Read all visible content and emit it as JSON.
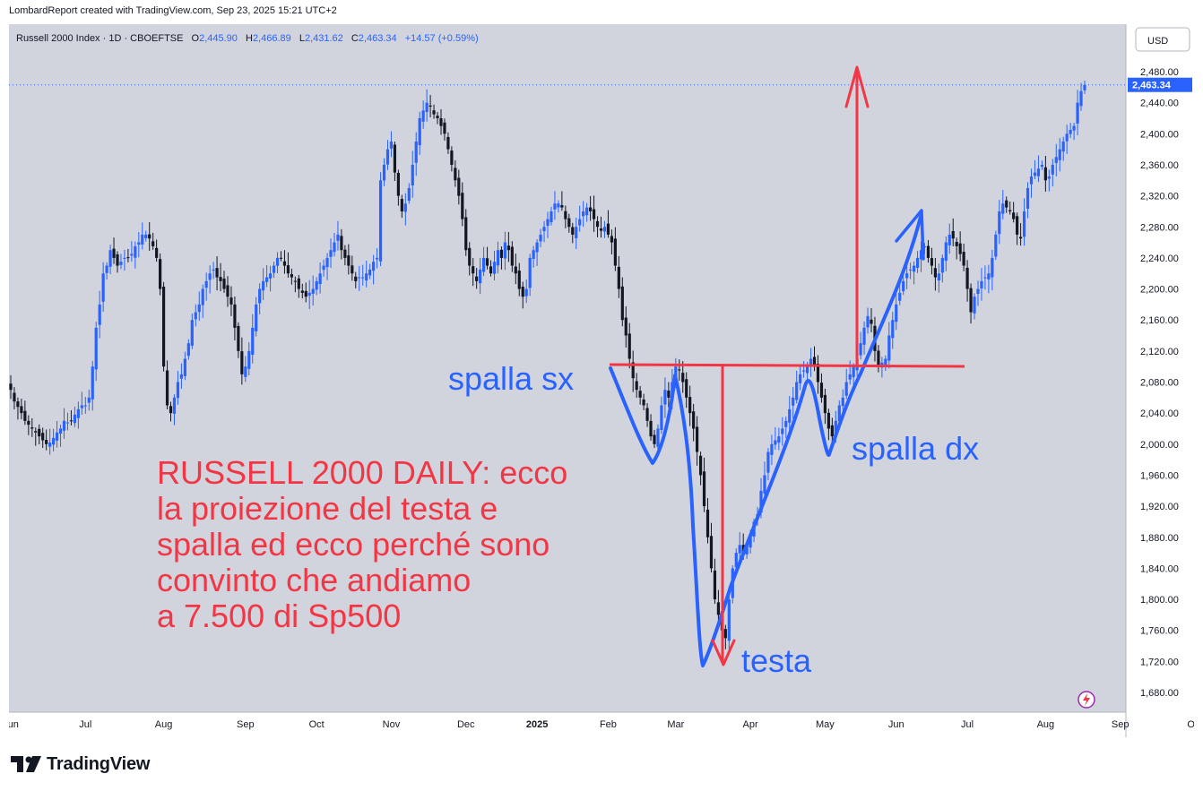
{
  "header_note": "LombardReport created with TradingView.com, Sep 23, 2025 15:21 UTC+2",
  "brand": "TradingView",
  "currency_button": "USD",
  "legend": {
    "symbol": "Russell 2000 Index · 1D · CBOEFTSE",
    "open_label": "O",
    "open": "2,445.90",
    "high_label": "H",
    "high": "2,466.89",
    "low_label": "L",
    "low": "2,431.62",
    "close_label": "C",
    "close": "2,463.34",
    "change": "+14.57 (+0.59%)"
  },
  "last_price_tag": "2,463.34",
  "colors": {
    "background": "#d1d4dc",
    "candle_up": "#2962ff",
    "candle_down": "#131722",
    "annotation_red": "#f23645",
    "annotation_blue": "#2962ff",
    "axis_text": "#131722"
  },
  "annotations": {
    "title_lines": [
      "RUSSELL 2000 DAILY: ecco",
      "la proiezione del testa e",
      "spalla ed ecco perché sono",
      "convinto che andiamo",
      "a 7.500 di Sp500"
    ],
    "left_shoulder": "spalla sx",
    "right_shoulder": "spalla dx",
    "head": "testa",
    "neckline_level": 2110,
    "head_low": 1722,
    "projection_target": 2495
  },
  "chart_data": {
    "type": "candlestick",
    "title": "Russell 2000 Index · 1D · CBOEFTSE",
    "ylim": [
      1660,
      2500
    ],
    "y_ticks": [
      "2,480.00",
      "2,440.00",
      "2,400.00",
      "2,360.00",
      "2,320.00",
      "2,280.00",
      "2,240.00",
      "2,200.00",
      "2,160.00",
      "2,120.00",
      "2,080.00",
      "2,040.00",
      "2,000.00",
      "1,960.00",
      "1,920.00",
      "1,880.00",
      "1,840.00",
      "1,800.00",
      "1,760.00",
      "1,720.00",
      "1,680.00"
    ],
    "y_tick_values": [
      2480,
      2440,
      2400,
      2360,
      2320,
      2280,
      2240,
      2200,
      2160,
      2120,
      2080,
      2040,
      2000,
      1960,
      1920,
      1880,
      1840,
      1800,
      1760,
      1720,
      1680
    ],
    "x_labels": [
      "Jun",
      "Jul",
      "Aug",
      "Sep",
      "Oct",
      "Nov",
      "Dec",
      "2025",
      "Feb",
      "Mar",
      "Apr",
      "May",
      "Jun",
      "Jul",
      "Aug",
      "Sep",
      "Oct"
    ],
    "x_label_index": [
      0,
      21,
      43,
      66,
      86,
      107,
      128,
      148,
      168,
      187,
      208,
      229,
      249,
      269,
      291,
      312,
      333
    ],
    "closes": [
      2070,
      2055,
      2048,
      2040,
      2030,
      2025,
      2020,
      2015,
      2010,
      2005,
      2000,
      2002,
      2008,
      2015,
      2020,
      2030,
      2028,
      2030,
      2038,
      2045,
      2050,
      2050,
      2060,
      2100,
      2150,
      2180,
      2220,
      2230,
      2250,
      2240,
      2230,
      2235,
      2240,
      2240,
      2245,
      2255,
      2260,
      2270,
      2270,
      2265,
      2255,
      2240,
      2200,
      2100,
      2050,
      2040,
      2060,
      2080,
      2090,
      2110,
      2130,
      2160,
      2170,
      2180,
      2200,
      2210,
      2220,
      2225,
      2215,
      2210,
      2200,
      2190,
      2180,
      2150,
      2120,
      2090,
      2100,
      2120,
      2150,
      2180,
      2200,
      2210,
      2215,
      2220,
      2230,
      2240,
      2240,
      2230,
      2220,
      2215,
      2210,
      2200,
      2195,
      2190,
      2195,
      2200,
      2210,
      2220,
      2230,
      2240,
      2250,
      2260,
      2270,
      2250,
      2240,
      2230,
      2220,
      2210,
      2215,
      2215,
      2220,
      2225,
      2235,
      2240,
      2340,
      2360,
      2380,
      2390,
      2350,
      2320,
      2300,
      2310,
      2330,
      2360,
      2390,
      2420,
      2430,
      2440,
      2435,
      2425,
      2420,
      2410,
      2400,
      2380,
      2360,
      2340,
      2320,
      2290,
      2250,
      2230,
      2220,
      2210,
      2225,
      2240,
      2230,
      2220,
      2235,
      2250,
      2240,
      2260,
      2250,
      2230,
      2220,
      2200,
      2190,
      2200,
      2240,
      2250,
      2260,
      2270,
      2280,
      2290,
      2300,
      2310,
      2310,
      2305,
      2290,
      2280,
      2270,
      2280,
      2290,
      2300,
      2305,
      2300,
      2290,
      2280,
      2275,
      2280,
      2270,
      2260,
      2230,
      2200,
      2160,
      2140,
      2110,
      2085,
      2070,
      2060,
      2050,
      2030,
      2010,
      2000,
      2020,
      2050,
      2070,
      2060,
      2080,
      2100,
      2095,
      2080,
      2060,
      2040,
      2020,
      1990,
      1960,
      1920,
      1880,
      1840,
      1800,
      1780,
      1760,
      1750,
      1800,
      1840,
      1860,
      1870,
      1860,
      1870,
      1880,
      1900,
      1910,
      1940,
      1960,
      1990,
      2000,
      2005,
      2010,
      2020,
      2030,
      2045,
      2060,
      2080,
      2090,
      2095,
      2100,
      2110,
      2100,
      2080,
      2060,
      2040,
      2020,
      2010,
      2030,
      2050,
      2060,
      2080,
      2090,
      2100,
      2110,
      2130,
      2150,
      2165,
      2155,
      2120,
      2100,
      2105,
      2110,
      2140,
      2160,
      2180,
      2195,
      2210,
      2220,
      2225,
      2230,
      2240,
      2250,
      2255,
      2240,
      2230,
      2215,
      2220,
      2240,
      2260,
      2270,
      2265,
      2255,
      2245,
      2230,
      2200,
      2170,
      2190,
      2200,
      2210,
      2215,
      2220,
      2240,
      2270,
      2300,
      2310,
      2305,
      2300,
      2290,
      2270,
      2265,
      2300,
      2330,
      2345,
      2350,
      2355,
      2360,
      2340,
      2345,
      2360,
      2370,
      2380,
      2390,
      2400,
      2405,
      2410,
      2440,
      2455,
      2463
    ]
  }
}
